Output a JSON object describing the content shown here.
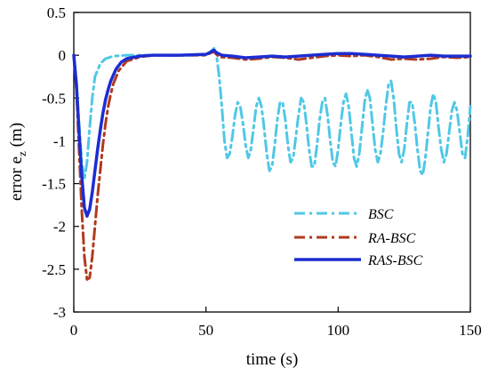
{
  "chart_data": {
    "type": "line",
    "title": "",
    "xlabel": "time (s)",
    "ylabel": "error e",
    "ylabel_sub": "z",
    "ylabel_unit": " (m)",
    "xlim": [
      0,
      150
    ],
    "ylim": [
      -3,
      0.5
    ],
    "xticks": [
      0,
      50,
      100,
      150
    ],
    "yticks": [
      0.5,
      0,
      -0.5,
      -1,
      -1.5,
      -2,
      -2.5,
      -3
    ],
    "xtick_labels": [
      "0",
      "50",
      "100",
      "150"
    ],
    "ytick_labels": [
      "0.5",
      "0",
      "-0.5",
      "-1",
      "-1.5",
      "-2",
      "-2.5",
      "-3"
    ],
    "grid": false,
    "legend_position": "bottom-right",
    "series": [
      {
        "name": "BSC",
        "color": "#4fc8e6",
        "style": "dash-dot",
        "points": [
          [
            0,
            0
          ],
          [
            1,
            -0.3
          ],
          [
            2,
            -0.8
          ],
          [
            3,
            -1.25
          ],
          [
            4,
            -1.45
          ],
          [
            5,
            -1.25
          ],
          [
            6,
            -0.85
          ],
          [
            7,
            -0.5
          ],
          [
            8,
            -0.25
          ],
          [
            10,
            -0.1
          ],
          [
            12,
            -0.04
          ],
          [
            15,
            -0.01
          ],
          [
            20,
            0
          ],
          [
            30,
            0
          ],
          [
            40,
            0
          ],
          [
            45,
            0
          ],
          [
            50,
            0.01
          ],
          [
            52,
            0.05
          ],
          [
            53,
            0.08
          ],
          [
            54,
            0
          ],
          [
            55,
            -0.25
          ],
          [
            56,
            -0.6
          ],
          [
            57,
            -1.0
          ],
          [
            58,
            -1.2
          ],
          [
            59,
            -1.15
          ],
          [
            60,
            -0.95
          ],
          [
            61,
            -0.7
          ],
          [
            62,
            -0.55
          ],
          [
            63,
            -0.6
          ],
          [
            64,
            -0.8
          ],
          [
            65,
            -1.05
          ],
          [
            66,
            -1.2
          ],
          [
            67,
            -1.1
          ],
          [
            68,
            -0.85
          ],
          [
            69,
            -0.6
          ],
          [
            70,
            -0.5
          ],
          [
            71,
            -0.6
          ],
          [
            72,
            -0.85
          ],
          [
            73,
            -1.15
          ],
          [
            74,
            -1.35
          ],
          [
            75,
            -1.3
          ],
          [
            76,
            -1.05
          ],
          [
            77,
            -0.75
          ],
          [
            78,
            -0.55
          ],
          [
            79,
            -0.55
          ],
          [
            80,
            -0.75
          ],
          [
            81,
            -1.05
          ],
          [
            82,
            -1.25
          ],
          [
            83,
            -1.2
          ],
          [
            84,
            -0.95
          ],
          [
            85,
            -0.7
          ],
          [
            86,
            -0.5
          ],
          [
            87,
            -0.55
          ],
          [
            88,
            -0.8
          ],
          [
            89,
            -1.1
          ],
          [
            90,
            -1.3
          ],
          [
            91,
            -1.3
          ],
          [
            92,
            -1.05
          ],
          [
            93,
            -0.75
          ],
          [
            94,
            -0.55
          ],
          [
            95,
            -0.5
          ],
          [
            96,
            -0.7
          ],
          [
            97,
            -1.0
          ],
          [
            98,
            -1.25
          ],
          [
            99,
            -1.3
          ],
          [
            100,
            -1.1
          ],
          [
            101,
            -0.8
          ],
          [
            102,
            -0.55
          ],
          [
            103,
            -0.45
          ],
          [
            104,
            -0.6
          ],
          [
            105,
            -0.9
          ],
          [
            106,
            -1.2
          ],
          [
            107,
            -1.3
          ],
          [
            108,
            -1.15
          ],
          [
            109,
            -0.85
          ],
          [
            110,
            -0.55
          ],
          [
            111,
            -0.4
          ],
          [
            112,
            -0.5
          ],
          [
            113,
            -0.8
          ],
          [
            114,
            -1.1
          ],
          [
            115,
            -1.25
          ],
          [
            116,
            -1.15
          ],
          [
            117,
            -0.9
          ],
          [
            118,
            -0.6
          ],
          [
            119,
            -0.35
          ],
          [
            120,
            -0.3
          ],
          [
            121,
            -0.5
          ],
          [
            122,
            -0.85
          ],
          [
            123,
            -1.15
          ],
          [
            124,
            -1.25
          ],
          [
            125,
            -1.1
          ],
          [
            126,
            -0.8
          ],
          [
            127,
            -0.55
          ],
          [
            128,
            -0.55
          ],
          [
            129,
            -0.8
          ],
          [
            130,
            -1.1
          ],
          [
            131,
            -1.35
          ],
          [
            132,
            -1.4
          ],
          [
            133,
            -1.2
          ],
          [
            134,
            -0.9
          ],
          [
            135,
            -0.6
          ],
          [
            136,
            -0.45
          ],
          [
            137,
            -0.55
          ],
          [
            138,
            -0.85
          ],
          [
            139,
            -1.1
          ],
          [
            140,
            -1.25
          ],
          [
            141,
            -1.15
          ],
          [
            142,
            -0.9
          ],
          [
            143,
            -0.65
          ],
          [
            144,
            -0.55
          ],
          [
            145,
            -0.65
          ],
          [
            146,
            -0.9
          ],
          [
            147,
            -1.15
          ],
          [
            148,
            -1.2
          ],
          [
            149,
            -0.95
          ],
          [
            150,
            -0.6
          ]
        ]
      },
      {
        "name": "RA-BSC",
        "color": "#b03a1e",
        "style": "dash-dot",
        "points": [
          [
            0,
            0
          ],
          [
            1,
            -0.4
          ],
          [
            2,
            -1.1
          ],
          [
            3,
            -1.8
          ],
          [
            4,
            -2.35
          ],
          [
            5,
            -2.62
          ],
          [
            6,
            -2.6
          ],
          [
            7,
            -2.35
          ],
          [
            8,
            -2.0
          ],
          [
            9,
            -1.65
          ],
          [
            10,
            -1.35
          ],
          [
            11,
            -1.05
          ],
          [
            12,
            -0.8
          ],
          [
            13,
            -0.6
          ],
          [
            14,
            -0.45
          ],
          [
            15,
            -0.33
          ],
          [
            17,
            -0.18
          ],
          [
            20,
            -0.07
          ],
          [
            25,
            -0.02
          ],
          [
            30,
            0
          ],
          [
            40,
            0
          ],
          [
            50,
            0
          ],
          [
            52,
            0.03
          ],
          [
            53,
            0.04
          ],
          [
            55,
            -0.02
          ],
          [
            60,
            -0.03
          ],
          [
            65,
            -0.05
          ],
          [
            70,
            -0.04
          ],
          [
            75,
            -0.02
          ],
          [
            80,
            -0.03
          ],
          [
            85,
            -0.05
          ],
          [
            90,
            -0.03
          ],
          [
            95,
            -0.01
          ],
          [
            100,
            0
          ],
          [
            105,
            -0.01
          ],
          [
            110,
            0.0
          ],
          [
            115,
            -0.02
          ],
          [
            120,
            -0.05
          ],
          [
            125,
            -0.04
          ],
          [
            130,
            -0.05
          ],
          [
            135,
            -0.04
          ],
          [
            140,
            -0.02
          ],
          [
            145,
            -0.03
          ],
          [
            150,
            -0.02
          ]
        ]
      },
      {
        "name": "RAS-BSC",
        "color": "#1c2dd1",
        "style": "solid",
        "points": [
          [
            0,
            0
          ],
          [
            1,
            -0.35
          ],
          [
            2,
            -0.9
          ],
          [
            3,
            -1.4
          ],
          [
            4,
            -1.78
          ],
          [
            5,
            -1.88
          ],
          [
            6,
            -1.8
          ],
          [
            7,
            -1.6
          ],
          [
            8,
            -1.35
          ],
          [
            9,
            -1.1
          ],
          [
            10,
            -0.88
          ],
          [
            11,
            -0.68
          ],
          [
            12,
            -0.52
          ],
          [
            13,
            -0.4
          ],
          [
            14,
            -0.3
          ],
          [
            16,
            -0.16
          ],
          [
            18,
            -0.08
          ],
          [
            20,
            -0.04
          ],
          [
            25,
            -0.01
          ],
          [
            30,
            0
          ],
          [
            40,
            0
          ],
          [
            50,
            0.01
          ],
          [
            52,
            0.04
          ],
          [
            53,
            0.06
          ],
          [
            54,
            0.03
          ],
          [
            56,
            0
          ],
          [
            60,
            -0.01
          ],
          [
            65,
            -0.03
          ],
          [
            70,
            -0.02
          ],
          [
            75,
            -0.01
          ],
          [
            80,
            -0.02
          ],
          [
            85,
            -0.01
          ],
          [
            90,
            0.0
          ],
          [
            95,
            0.01
          ],
          [
            100,
            0.02
          ],
          [
            105,
            0.02
          ],
          [
            110,
            0.01
          ],
          [
            115,
            0
          ],
          [
            120,
            -0.01
          ],
          [
            125,
            -0.02
          ],
          [
            130,
            -0.01
          ],
          [
            135,
            0
          ],
          [
            140,
            -0.01
          ],
          [
            145,
            -0.01
          ],
          [
            150,
            -0.01
          ]
        ]
      }
    ]
  }
}
